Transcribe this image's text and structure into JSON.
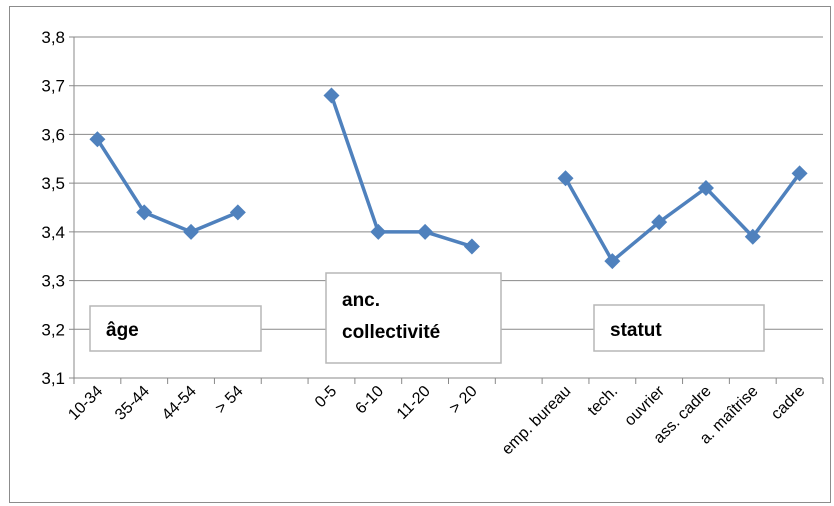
{
  "chart_data": {
    "type": "line",
    "ylim": [
      3.1,
      3.8
    ],
    "yticks": [
      "3,1",
      "3,2",
      "3,3",
      "3,4",
      "3,5",
      "3,6",
      "3,7",
      "3,8"
    ],
    "grid": true,
    "legend": "none",
    "color": "#4f81bd",
    "categories": [
      "10-34",
      "35-44",
      "44-54",
      "> 54",
      "",
      "0-5",
      "6-10",
      "11-20",
      "> 20",
      "",
      "emp. bureau",
      "tech.",
      "ouvrier",
      "ass. cadre",
      "a. maîtrise",
      "cadre"
    ],
    "groups": [
      {
        "label": "âge",
        "categories": [
          "10-34",
          "35-44",
          "44-54",
          "> 54"
        ],
        "values": [
          3.59,
          3.44,
          3.4,
          3.44
        ]
      },
      {
        "label": "anc. collectivité",
        "label_lines": [
          "anc.",
          "collectivité"
        ],
        "categories": [
          "0-5",
          "6-10",
          "11-20",
          "> 20"
        ],
        "values": [
          3.68,
          3.4,
          3.4,
          3.37
        ]
      },
      {
        "label": "statut",
        "categories": [
          "emp. bureau",
          "tech.",
          "ouvrier",
          "ass. cadre",
          "a. maîtrise",
          "cadre"
        ],
        "values": [
          3.51,
          3.34,
          3.42,
          3.49,
          3.39,
          3.52
        ]
      }
    ]
  }
}
